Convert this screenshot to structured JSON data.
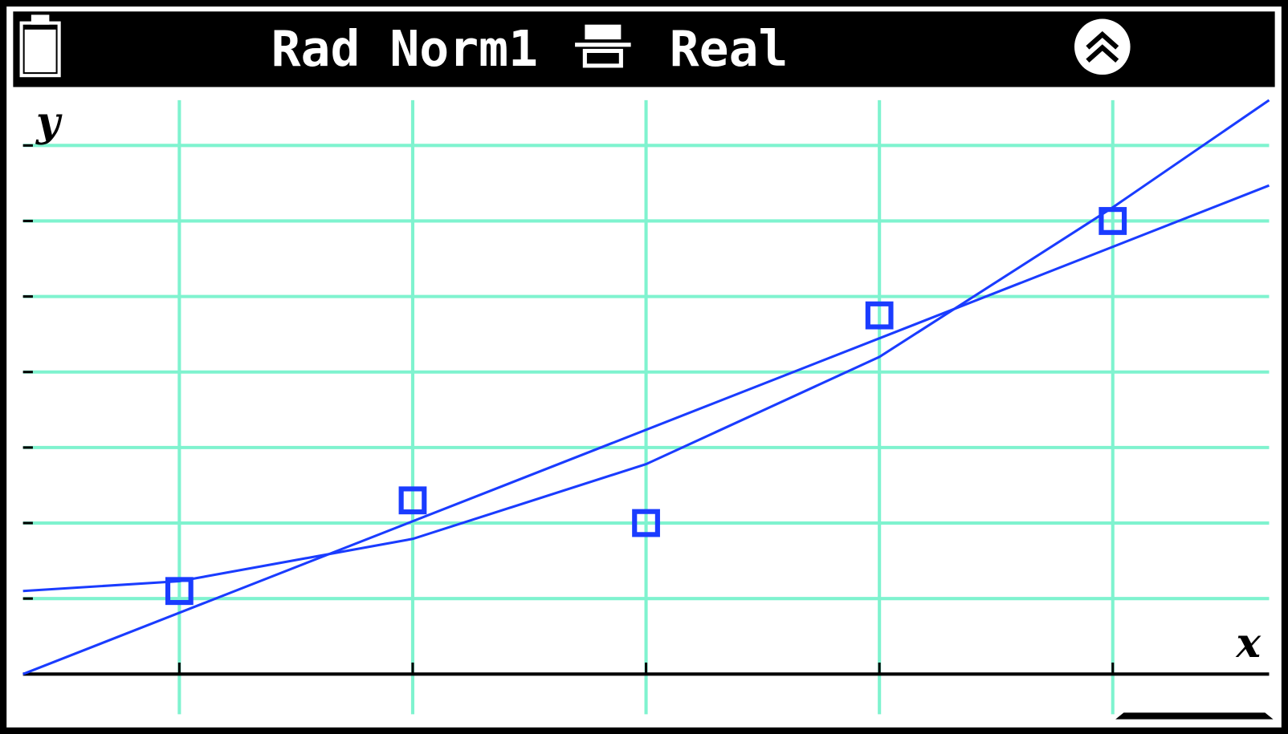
{
  "status_bar": {
    "angle_display": "Rad Norm1",
    "complex_mode": "Real"
  },
  "chart_data": {
    "type": "scatter",
    "x_label": "x",
    "y_label": "y",
    "x": [
      1,
      2,
      3,
      4,
      5
    ],
    "values": [
      1.1,
      2.3,
      2.0,
      4.75,
      6.0
    ],
    "color": "#1a3cff",
    "lines": [
      {
        "x": [
          0.33,
          5.67
        ],
        "values": [
          0,
          6.47
        ]
      },
      {
        "x": [
          0.33,
          1,
          2,
          3,
          4,
          5,
          5.67
        ],
        "values": [
          1.1,
          1.23,
          1.79,
          2.78,
          4.2,
          6.18,
          7.6
        ]
      }
    ],
    "xlim": [
      0.33,
      5.67
    ],
    "ylim": [
      0,
      7.6
    ],
    "xticks": [
      1,
      2,
      3,
      4,
      5
    ],
    "yticks": [
      1,
      2,
      3,
      4,
      5,
      6,
      7
    ],
    "grid": true
  }
}
